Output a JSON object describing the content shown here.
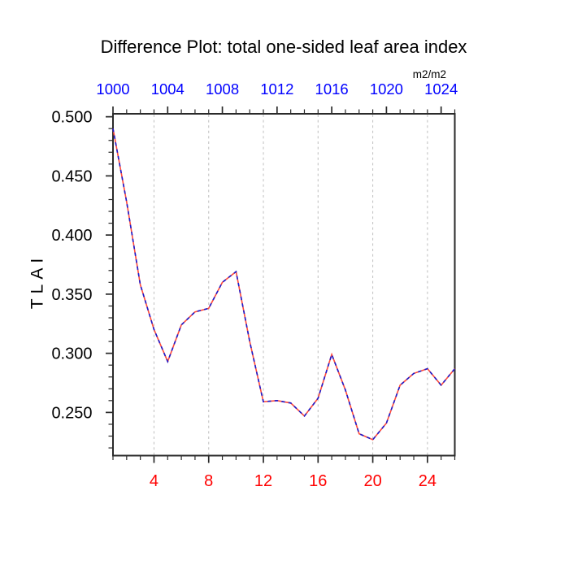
{
  "title": "Difference Plot: total one-sided leaf area index",
  "unit_label": "m2/m2",
  "ylabel": "TLAI",
  "colors": {
    "background": "#ffffff",
    "title_text": "#000000",
    "top_axis_labels": "#0000ff",
    "bottom_axis_labels": "#ff0000",
    "left_axis_labels": "#000000",
    "axis_frame": "#2a2a2a",
    "gridline": "#c4c4c4",
    "line_red": "#ff4a3a",
    "line_blue": "#1a1acd"
  },
  "chart_data": {
    "type": "line",
    "title": "Difference Plot: total one-sided leaf area index",
    "ylabel": "TLAI",
    "top_axis_unit": "m2/m2",
    "xlim": [
      1,
      26
    ],
    "ylim": [
      0.2135,
      0.5025
    ],
    "grid": "vertical-dashed-gray-at-bottom-major-ticks",
    "legend": "none",
    "x": [
      1,
      2,
      3,
      4,
      5,
      6,
      7,
      8,
      9,
      10,
      11,
      12,
      13,
      14,
      15,
      16,
      17,
      18,
      19,
      20,
      21,
      22,
      23,
      24,
      25,
      26
    ],
    "values": [
      0.49,
      0.428,
      0.358,
      0.32,
      0.293,
      0.324,
      0.335,
      0.338,
      0.36,
      0.369,
      0.31,
      0.259,
      0.26,
      0.258,
      0.247,
      0.262,
      0.299,
      0.269,
      0.232,
      0.227,
      0.241,
      0.273,
      0.283,
      0.287,
      0.273,
      0.287
    ],
    "line_style": "single series drawn twice: red solid underneath, blue dashes on top (appears as alternating red/blue dashed line)",
    "x_ticks_bottom": {
      "positions": [
        4,
        8,
        12,
        16,
        20,
        24
      ],
      "labels": [
        "4",
        "8",
        "12",
        "16",
        "20",
        "24"
      ],
      "minor_step": 1
    },
    "x_ticks_top": {
      "positions": [
        1,
        5,
        9,
        13,
        17,
        21,
        25
      ],
      "labels": [
        "1000",
        "1004",
        "1008",
        "1012",
        "1016",
        "1020",
        "1024"
      ],
      "minor_step": 1
    },
    "y_ticks": {
      "values": [
        0.5,
        0.45,
        0.4,
        0.35,
        0.3,
        0.25
      ],
      "labels": [
        "0.500",
        "0.450",
        "0.400",
        "0.350",
        "0.300",
        "0.250"
      ],
      "minor_step": 0.01
    }
  }
}
